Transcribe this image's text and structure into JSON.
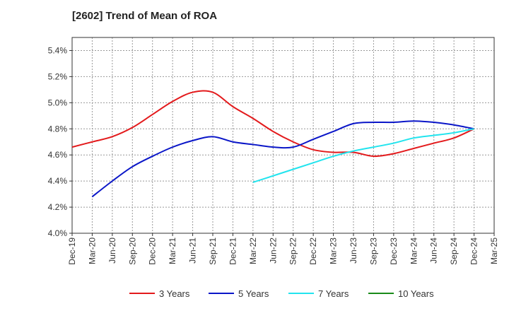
{
  "chart_data": {
    "type": "line",
    "title": "[2602]  Trend of Mean of ROA",
    "xlabel": "",
    "ylabel": "",
    "x_ticks": [
      "Dec-19",
      "Mar-20",
      "Jun-20",
      "Sep-20",
      "Dec-20",
      "Mar-21",
      "Jun-21",
      "Sep-21",
      "Dec-21",
      "Mar-22",
      "Jun-22",
      "Sep-22",
      "Dec-22",
      "Mar-23",
      "Jun-23",
      "Sep-23",
      "Dec-23",
      "Mar-24",
      "Jun-24",
      "Sep-24",
      "Dec-24",
      "Mar-25"
    ],
    "ylim": [
      4.0,
      5.5
    ],
    "y_ticks": [
      4.0,
      4.2,
      4.4,
      4.6,
      4.8,
      5.0,
      5.2,
      5.4
    ],
    "y_tick_format": "percent_1dp",
    "grid": true,
    "legend_position": "bottom",
    "series": [
      {
        "name": "3 Years",
        "color": "#e31a1c",
        "x": [
          "Dec-19",
          "Mar-20",
          "Jun-20",
          "Sep-20",
          "Dec-20",
          "Mar-21",
          "Jun-21",
          "Sep-21",
          "Dec-21",
          "Mar-22",
          "Jun-22",
          "Sep-22",
          "Dec-22",
          "Mar-23",
          "Jun-23",
          "Sep-23",
          "Dec-23",
          "Mar-24",
          "Jun-24",
          "Sep-24",
          "Dec-24"
        ],
        "values": [
          4.66,
          4.7,
          4.74,
          4.81,
          4.91,
          5.01,
          5.08,
          5.08,
          4.97,
          4.88,
          4.78,
          4.7,
          4.64,
          4.62,
          4.62,
          4.59,
          4.61,
          4.65,
          4.69,
          4.73,
          4.8
        ]
      },
      {
        "name": "5 Years",
        "color": "#0a16c8",
        "x": [
          "Mar-20",
          "Jun-20",
          "Sep-20",
          "Dec-20",
          "Mar-21",
          "Jun-21",
          "Sep-21",
          "Dec-21",
          "Mar-22",
          "Jun-22",
          "Sep-22",
          "Dec-22",
          "Mar-23",
          "Jun-23",
          "Sep-23",
          "Dec-23",
          "Mar-24",
          "Jun-24",
          "Sep-24",
          "Dec-24"
        ],
        "values": [
          4.28,
          4.4,
          4.51,
          4.59,
          4.66,
          4.71,
          4.74,
          4.7,
          4.68,
          4.66,
          4.66,
          4.72,
          4.78,
          4.84,
          4.85,
          4.85,
          4.86,
          4.85,
          4.83,
          4.8
        ]
      },
      {
        "name": "7 Years",
        "color": "#22e4ee",
        "x": [
          "Mar-22",
          "Jun-22",
          "Sep-22",
          "Dec-22",
          "Mar-23",
          "Jun-23",
          "Sep-23",
          "Dec-23",
          "Mar-24",
          "Jun-24",
          "Sep-24",
          "Dec-24"
        ],
        "values": [
          4.39,
          4.44,
          4.49,
          4.54,
          4.59,
          4.63,
          4.66,
          4.69,
          4.73,
          4.75,
          4.77,
          4.8
        ]
      },
      {
        "name": "10 Years",
        "color": "#1a8a1a",
        "x": [],
        "values": []
      }
    ]
  }
}
